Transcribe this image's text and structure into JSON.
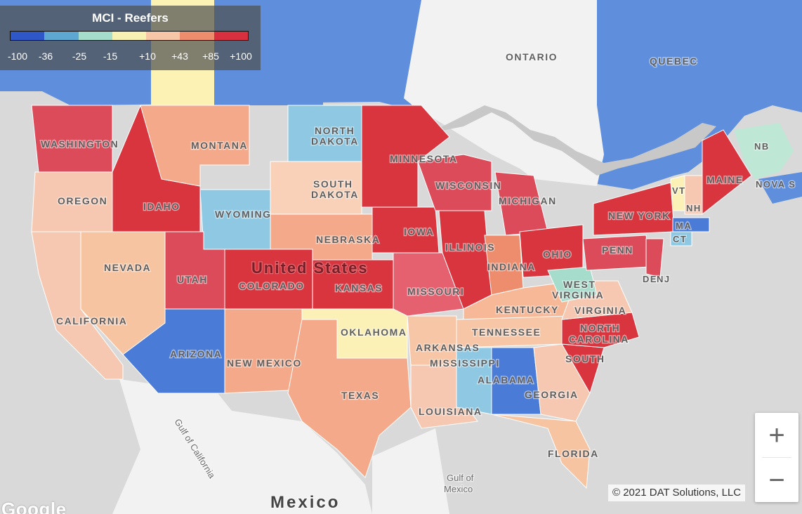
{
  "legend": {
    "title": "MCI - Reefers",
    "colors": [
      "#2f57c7",
      "#5fa7d3",
      "#a6dccb",
      "#f6f0b3",
      "#f7c6a6",
      "#ee8d6d",
      "#d8303e"
    ],
    "ticks": [
      "-100",
      "-36",
      "-25",
      "-15",
      "+10",
      "+43",
      "+85",
      "+100"
    ]
  },
  "palette": {
    "ocean": "#d9d9d9",
    "land_other": "#f2f2f2",
    "canada": "#5f8fdc",
    "state_border": "#ffffff"
  },
  "labels": {
    "ontario": "ONTARIO",
    "quebec": "QUEBEC",
    "nb": "NB",
    "nova_scotia": "NOVA S",
    "maine": "MAINE",
    "vt": "VT",
    "nh": "NH",
    "ma": "MA",
    "ct": "CT",
    "nj": "NJ",
    "de": "DE",
    "washington": "WASHINGTON",
    "oregon": "OREGON",
    "california": "CALIFORNIA",
    "nevada": "NEVADA",
    "idaho": "IDAHO",
    "montana": "MONTANA",
    "wyoming": "WYOMING",
    "utah": "UTAH",
    "arizona": "ARIZONA",
    "colorado": "COLORADO",
    "new_mexico": "NEW MEXICO",
    "north_dakota_1": "NORTH",
    "north_dakota_2": "DAKOTA",
    "south_dakota_1": "SOUTH",
    "south_dakota_2": "DAKOTA",
    "nebraska": "NEBRASKA",
    "kansas": "KANSAS",
    "oklahoma": "OKLAHOMA",
    "texas": "TEXAS",
    "minnesota": "MINNESOTA",
    "iowa": "IOWA",
    "missouri": "MISSOURI",
    "arkansas": "ARKANSAS",
    "louisiana": "LOUISIANA",
    "wisconsin": "WISCONSIN",
    "illinois": "ILLINOIS",
    "michigan": "MICHIGAN",
    "indiana": "INDIANA",
    "ohio": "OHIO",
    "kentucky": "KENTUCKY",
    "tennessee": "TENNESSEE",
    "mississippi": "MISSISSIPPI",
    "alabama": "ALABAMA",
    "georgia": "GEORGIA",
    "florida": "FLORIDA",
    "south_carolina": "SOUTH",
    "north_carolina_1": "NORTH",
    "north_carolina_2": "CAROLINA",
    "virginia": "VIRGINIA",
    "west_virginia_1": "WEST",
    "west_virginia_2": "VIRGINIA",
    "penn": "PENN",
    "new_york": "NEW YORK",
    "united_states": "United States",
    "mexico": "Mexico",
    "gulf_of_mexico_1": "Gulf of",
    "gulf_of_mexico_2": "Mexico",
    "gulf_of_california": "Gulf of California"
  },
  "zoom": {
    "in": "+",
    "out": "−"
  },
  "attribution": "© 2021 DAT Solutions, LLC",
  "google": "Google"
}
